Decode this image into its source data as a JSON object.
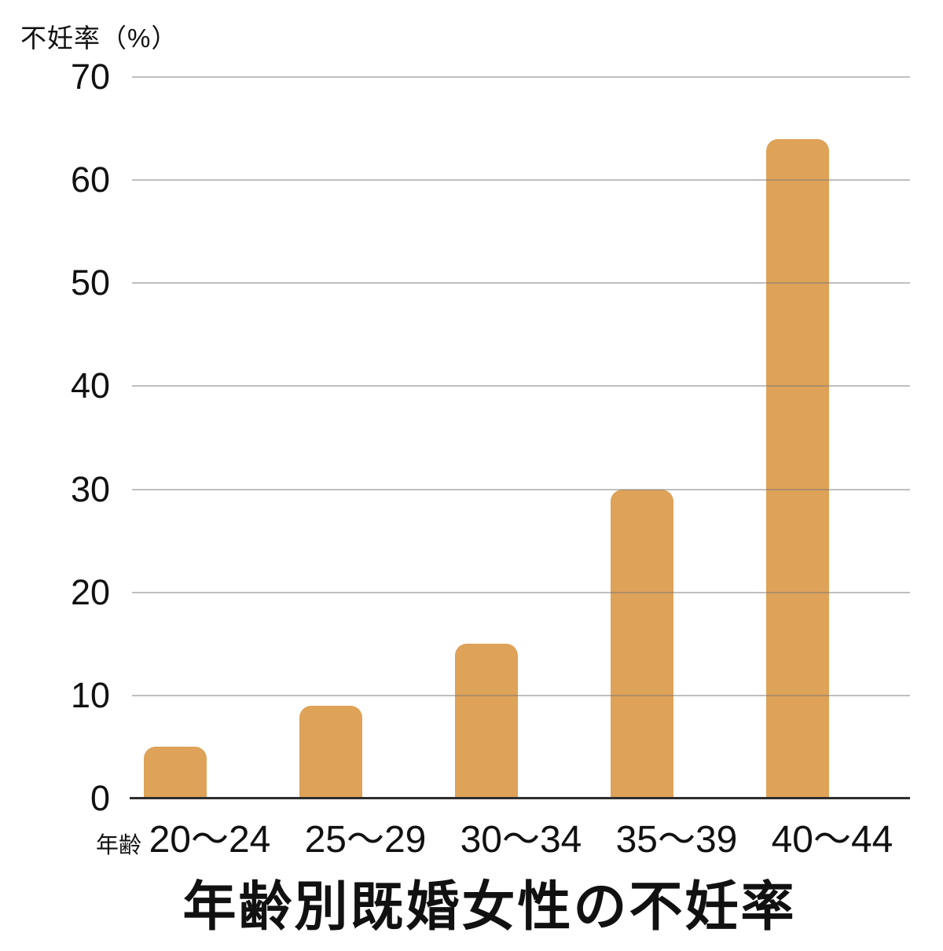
{
  "chart_data": {
    "type": "bar",
    "title": "年齢別既婚女性の不妊率",
    "y_axis_title": "不妊率（%）",
    "x_axis_title": "年齢",
    "categories": [
      "20〜24",
      "25〜29",
      "30〜34",
      "35〜39",
      "40〜44"
    ],
    "values": [
      5,
      9,
      15,
      30,
      64
    ],
    "ylim": [
      0,
      70
    ],
    "ytick_interval": 10,
    "ytick_labels": [
      "0",
      "10",
      "20",
      "30",
      "40",
      "50",
      "60",
      "70"
    ],
    "grid": "horizontal-over-bars",
    "legend": "none",
    "colors": {
      "bar": "#DEA258",
      "gridline": "#bdbdbd",
      "axis_line": "#2e2e2e",
      "text": "#111111",
      "background": "#ffffff"
    }
  }
}
